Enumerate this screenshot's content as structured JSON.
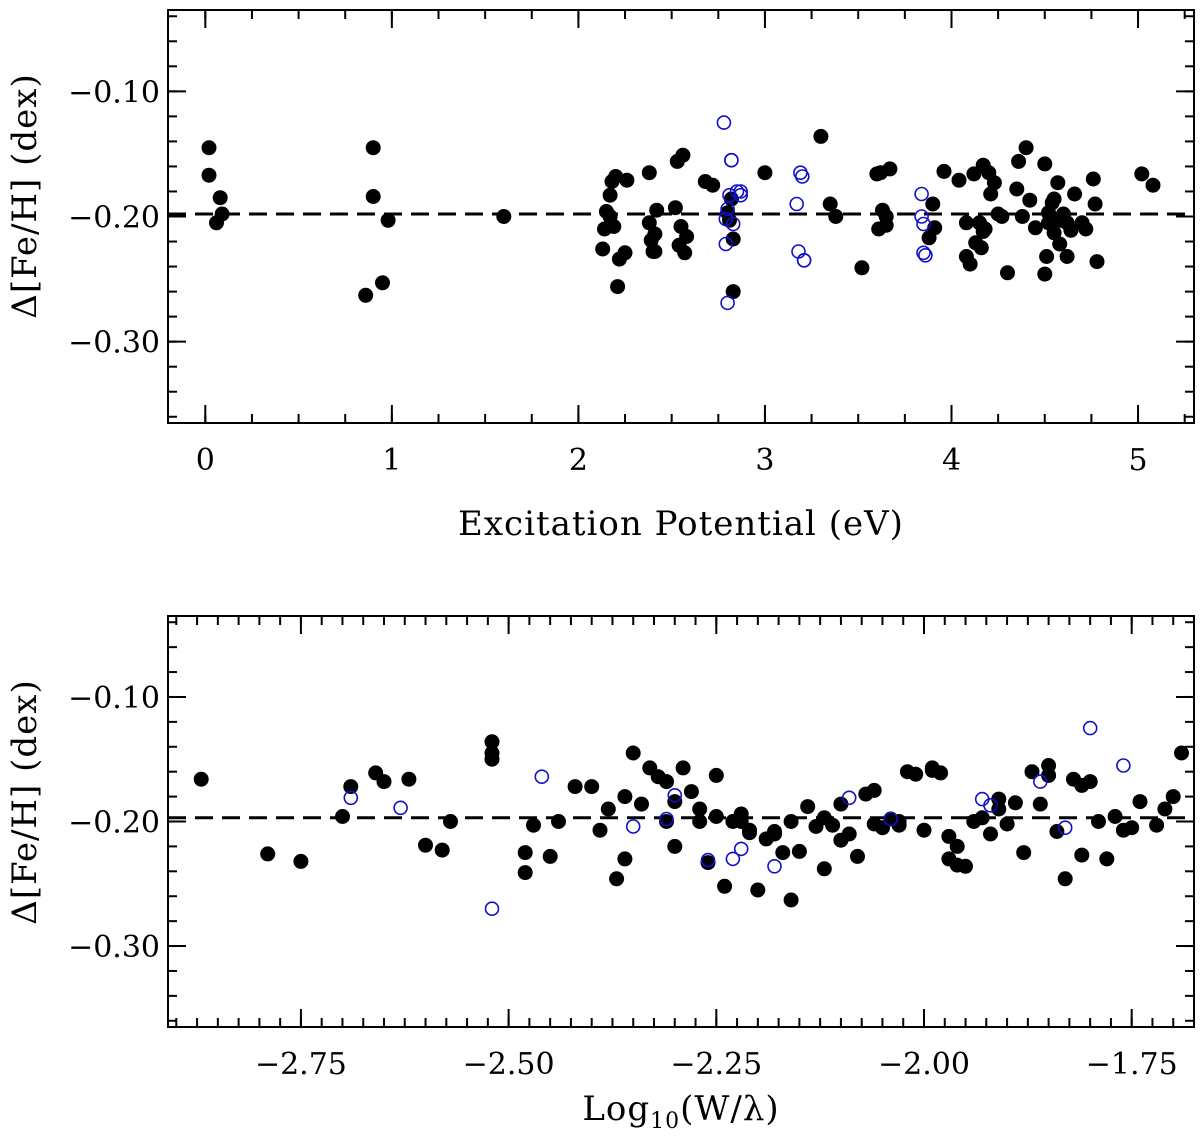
{
  "colors": {
    "filled": "#000000",
    "open": "#1010cc"
  },
  "chart_data": [
    {
      "type": "scatter",
      "xlabel": "Excitation Potential (eV)",
      "ylabel": "Δ[Fe/H] (dex)",
      "xlim": [
        -0.2,
        5.3
      ],
      "ylim": [
        -0.365,
        -0.035
      ],
      "xticks": [
        {
          "v": 0,
          "label": "0"
        },
        {
          "v": 1,
          "label": "1"
        },
        {
          "v": 2,
          "label": "2"
        },
        {
          "v": 3,
          "label": "3"
        },
        {
          "v": 4,
          "label": "4"
        },
        {
          "v": 5,
          "label": "5"
        }
      ],
      "yticks": [
        {
          "v": -0.1,
          "label": "−0.10"
        },
        {
          "v": -0.2,
          "label": "−0.20"
        },
        {
          "v": -0.3,
          "label": "−0.30"
        }
      ],
      "reference_line": -0.198,
      "series": [
        {
          "marker": "filled",
          "x": [
            0.02,
            0.02,
            0.08,
            0.09,
            0.06,
            0.86,
            0.9,
            0.9,
            0.95,
            0.98,
            1.6,
            2.13,
            2.14,
            2.15,
            2.17,
            2.17,
            2.18,
            2.19,
            2.2,
            2.21,
            2.22,
            2.25,
            2.26,
            2.38,
            2.38,
            2.39,
            2.4,
            2.41,
            2.41,
            2.42,
            2.52,
            2.53,
            2.54,
            2.55,
            2.56,
            2.57,
            2.58,
            2.68,
            2.72,
            2.8,
            2.81,
            2.82,
            2.83,
            2.83,
            3.0,
            3.3,
            3.35,
            3.38,
            3.52,
            3.6,
            3.61,
            3.62,
            3.63,
            3.65,
            3.65,
            3.67,
            3.88,
            3.9,
            3.91,
            3.96,
            4.04,
            4.08,
            4.08,
            4.1,
            4.12,
            4.13,
            4.15,
            4.16,
            4.17,
            4.17,
            4.18,
            4.2,
            4.21,
            4.23,
            4.25,
            4.27,
            4.3,
            4.35,
            4.36,
            4.38,
            4.4,
            4.42,
            4.45,
            4.5,
            4.5,
            4.51,
            4.52,
            4.52,
            4.54,
            4.55,
            4.55,
            4.56,
            4.57,
            4.58,
            4.59,
            4.6,
            4.62,
            4.62,
            4.64,
            4.66,
            4.7,
            4.72,
            4.76,
            4.77,
            4.78,
            5.02,
            5.08
          ],
          "y": [
            -0.145,
            -0.167,
            -0.185,
            -0.198,
            -0.205,
            -0.263,
            -0.145,
            -0.184,
            -0.253,
            -0.203,
            -0.2,
            -0.226,
            -0.21,
            -0.196,
            -0.2,
            -0.183,
            -0.172,
            -0.208,
            -0.168,
            -0.256,
            -0.234,
            -0.229,
            -0.171,
            -0.165,
            -0.205,
            -0.219,
            -0.228,
            -0.214,
            -0.228,
            -0.195,
            -0.193,
            -0.156,
            -0.223,
            -0.208,
            -0.151,
            -0.229,
            -0.216,
            -0.172,
            -0.175,
            -0.197,
            -0.203,
            -0.186,
            -0.218,
            -0.26,
            -0.165,
            -0.136,
            -0.19,
            -0.2,
            -0.241,
            -0.166,
            -0.21,
            -0.165,
            -0.195,
            -0.2,
            -0.207,
            -0.162,
            -0.217,
            -0.19,
            -0.209,
            -0.164,
            -0.171,
            -0.232,
            -0.205,
            -0.238,
            -0.166,
            -0.221,
            -0.205,
            -0.225,
            -0.159,
            -0.212,
            -0.21,
            -0.165,
            -0.182,
            -0.173,
            -0.198,
            -0.2,
            -0.245,
            -0.178,
            -0.156,
            -0.2,
            -0.145,
            -0.187,
            -0.209,
            -0.158,
            -0.246,
            -0.232,
            -0.197,
            -0.205,
            -0.189,
            -0.213,
            -0.186,
            -0.203,
            -0.173,
            -0.222,
            -0.203,
            -0.198,
            -0.232,
            -0.205,
            -0.211,
            -0.182,
            -0.205,
            -0.21,
            -0.17,
            -0.19,
            -0.236,
            -0.166,
            -0.175
          ]
        },
        {
          "marker": "open",
          "x": [
            2.78,
            2.79,
            2.79,
            2.8,
            2.8,
            2.81,
            2.82,
            2.82,
            2.83,
            2.85,
            2.87,
            2.87,
            3.17,
            3.18,
            3.19,
            3.2,
            3.21,
            3.21,
            3.84,
            3.84,
            3.85,
            3.85,
            3.86
          ],
          "y": [
            -0.125,
            -0.202,
            -0.222,
            -0.269,
            -0.194,
            -0.183,
            -0.155,
            -0.155,
            -0.206,
            -0.18,
            -0.18,
            -0.183,
            -0.19,
            -0.228,
            -0.165,
            -0.168,
            -0.235,
            -0.235,
            -0.182,
            -0.2,
            -0.206,
            -0.229,
            -0.231
          ]
        }
      ]
    },
    {
      "type": "scatter",
      "xlabel": "Log10(W/λ)",
      "xlabel_main": "Log",
      "xlabel_sub": "10",
      "xlabel_tail": "(W/λ)",
      "ylabel": "Δ[Fe/H] (dex)",
      "xlim": [
        -2.91,
        -1.675
      ],
      "ylim": [
        -0.365,
        -0.035
      ],
      "xticks": [
        {
          "v": -2.75,
          "label": "−2.75"
        },
        {
          "v": -2.5,
          "label": "−2.50"
        },
        {
          "v": -2.25,
          "label": "−2.25"
        },
        {
          "v": -2.0,
          "label": "−2.00"
        },
        {
          "v": -1.75,
          "label": "−1.75"
        }
      ],
      "yticks": [
        {
          "v": -0.1,
          "label": "−0.10"
        },
        {
          "v": -0.2,
          "label": "−0.20"
        },
        {
          "v": -0.3,
          "label": "−0.30"
        }
      ],
      "reference_line": -0.197,
      "series": [
        {
          "marker": "filled",
          "x": [
            -2.87,
            -2.79,
            -2.75,
            -2.7,
            -2.69,
            -2.66,
            -2.65,
            -2.62,
            -2.6,
            -2.58,
            -2.57,
            -2.52,
            -2.52,
            -2.52,
            -2.48,
            -2.48,
            -2.47,
            -2.45,
            -2.4,
            -2.39,
            -2.38,
            -2.37,
            -2.36,
            -2.35,
            -2.34,
            -2.33,
            -2.32,
            -2.31,
            -2.3,
            -2.3,
            -2.29,
            -2.28,
            -2.27,
            -2.26,
            -2.25,
            -2.24,
            -2.23,
            -2.22,
            -2.21,
            -2.2,
            -2.19,
            -2.18,
            -2.17,
            -2.16,
            -2.15,
            -2.14,
            -2.13,
            -2.12,
            -2.11,
            -2.1,
            -2.09,
            -2.08,
            -2.07,
            -2.06,
            -2.05,
            -2.04,
            -2.03,
            -2.02,
            -2.01,
            -2.0,
            -1.99,
            -1.98,
            -1.97,
            -1.96,
            -1.95,
            -1.94,
            -1.93,
            -1.92,
            -1.91,
            -1.9,
            -1.89,
            -1.88,
            -1.87,
            -1.86,
            -1.85,
            -1.84,
            -1.83,
            -1.82,
            -1.81,
            -1.8,
            -1.79,
            -1.78,
            -1.77,
            -1.76,
            -1.75,
            -1.74,
            -1.72,
            -1.71,
            -1.7,
            -1.69,
            -2.25,
            -2.22,
            -2.18,
            -2.12,
            -2.06,
            -1.99,
            -1.96,
            -1.91,
            -1.85,
            -1.81,
            -2.42,
            -2.44,
            -2.36,
            -2.31,
            -2.27,
            -2.21,
            -2.16,
            -2.1,
            -2.03,
            -1.97
          ],
          "y": [
            -0.166,
            -0.226,
            -0.232,
            -0.196,
            -0.172,
            -0.161,
            -0.168,
            -0.166,
            -0.219,
            -0.223,
            -0.2,
            -0.136,
            -0.145,
            -0.15,
            -0.225,
            -0.241,
            -0.203,
            -0.228,
            -0.172,
            -0.207,
            -0.19,
            -0.246,
            -0.18,
            -0.145,
            -0.186,
            -0.157,
            -0.164,
            -0.168,
            -0.22,
            -0.184,
            -0.157,
            -0.176,
            -0.2,
            -0.233,
            -0.196,
            -0.252,
            -0.2,
            -0.2,
            -0.209,
            -0.255,
            -0.214,
            -0.208,
            -0.225,
            -0.263,
            -0.224,
            -0.188,
            -0.204,
            -0.197,
            -0.203,
            -0.215,
            -0.21,
            -0.228,
            -0.178,
            -0.175,
            -0.205,
            -0.198,
            -0.203,
            -0.16,
            -0.162,
            -0.207,
            -0.157,
            -0.161,
            -0.23,
            -0.235,
            -0.236,
            -0.2,
            -0.197,
            -0.21,
            -0.19,
            -0.202,
            -0.185,
            -0.225,
            -0.16,
            -0.186,
            -0.155,
            -0.208,
            -0.246,
            -0.166,
            -0.227,
            -0.168,
            -0.2,
            -0.23,
            -0.196,
            -0.207,
            -0.205,
            -0.184,
            -0.203,
            -0.19,
            -0.18,
            -0.145,
            -0.163,
            -0.194,
            -0.21,
            -0.238,
            -0.202,
            -0.159,
            -0.22,
            -0.182,
            -0.163,
            -0.171,
            -0.172,
            -0.2,
            -0.23,
            -0.2,
            -0.19,
            -0.207,
            -0.2,
            -0.186,
            -0.2,
            -0.212
          ],
          "note": "filled points"
        },
        {
          "marker": "open",
          "x": [
            -2.69,
            -2.63,
            -2.52,
            -2.46,
            -2.35,
            -2.31,
            -2.3,
            -2.26,
            -2.23,
            -2.22,
            -2.18,
            -2.09,
            -2.04,
            -1.93,
            -1.92,
            -1.86,
            -1.83,
            -1.8,
            -1.76
          ],
          "y": [
            -0.181,
            -0.189,
            -0.27,
            -0.164,
            -0.204,
            -0.198,
            -0.179,
            -0.231,
            -0.23,
            -0.222,
            -0.236,
            -0.181,
            -0.198,
            -0.182,
            -0.187,
            -0.168,
            -0.205,
            -0.125,
            -0.155
          ]
        }
      ]
    }
  ]
}
